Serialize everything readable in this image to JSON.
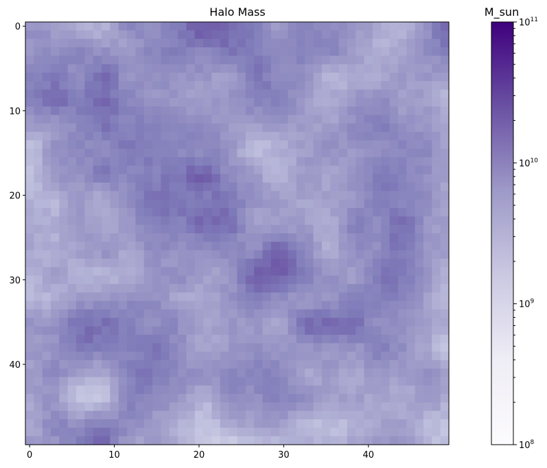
{
  "chart_data": {
    "type": "heatmap",
    "title": "Halo Mass",
    "colorbar_label": "M_sun",
    "colormap": "Purples",
    "color_scale": "log",
    "colorbar_range": [
      100000000,
      100000000000
    ],
    "colorbar_ticks": [
      {
        "base": "10",
        "exp": "8",
        "value": 100000000
      },
      {
        "base": "10",
        "exp": "9",
        "value": 1000000000
      },
      {
        "base": "10",
        "exp": "10",
        "value": 10000000000
      },
      {
        "base": "10",
        "exp": "11",
        "value": 100000000000
      }
    ],
    "colors": {
      "low": "#fcfbfd",
      "mid": "#9e9ac8",
      "high": "#3f007d"
    },
    "grid_size": [
      50,
      50
    ],
    "x_ticks": [
      "0",
      "10",
      "20",
      "30",
      "40"
    ],
    "y_ticks": [
      "0",
      "10",
      "20",
      "30",
      "40"
    ],
    "x_tick_values": [
      0,
      10,
      20,
      30,
      40
    ],
    "y_tick_values": [
      0,
      10,
      20,
      30,
      40
    ],
    "grid": false,
    "mean_log10_mass": 9.55,
    "log10_mass_std": 0.4,
    "values": "approximate random field of halo masses, see script"
  }
}
